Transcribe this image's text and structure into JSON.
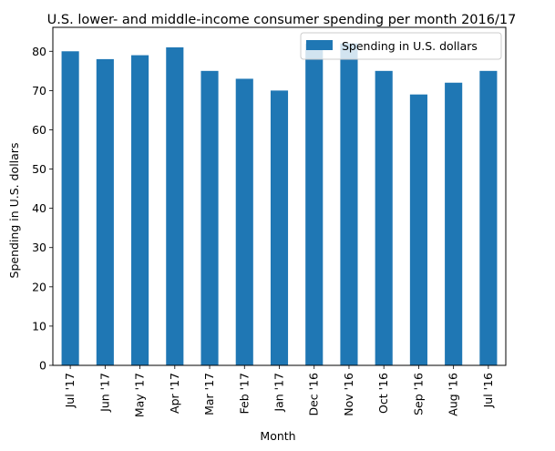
{
  "chart_data": {
    "type": "bar",
    "title": "U.S. lower- and middle-income consumer spending per month 2016/17",
    "xlabel": "Month",
    "ylabel": "Spending in U.S. dollars",
    "categories": [
      "Jul '17",
      "Jun '17",
      "May '17",
      "Apr '17",
      "Mar '17",
      "Feb '17",
      "Jan '17",
      "Dec '16",
      "Nov '16",
      "Oct '16",
      "Sep '16",
      "Aug '16",
      "Jul '16"
    ],
    "series": [
      {
        "name": "Spending in U.S. dollars",
        "values": [
          80,
          78,
          79,
          81,
          75,
          73,
          70,
          82,
          82,
          75,
          69,
          72,
          75
        ],
        "color": "#1f77b4"
      }
    ],
    "ylim": [
      0,
      86.1
    ],
    "yticks": [
      0,
      10,
      20,
      30,
      40,
      50,
      60,
      70,
      80
    ],
    "grid": false,
    "legend_position": "top-right"
  }
}
